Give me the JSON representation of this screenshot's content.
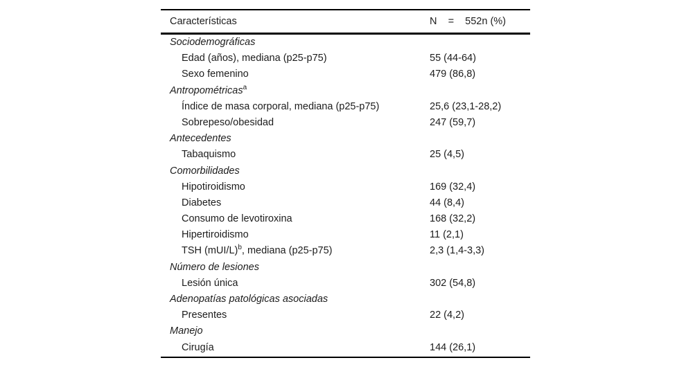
{
  "table": {
    "header": {
      "characteristics_label": "Características",
      "n_total_label": "N    =    552n (%)"
    },
    "sections": [
      {
        "title": "Sociodemográficas",
        "sup": "",
        "rows": [
          {
            "label": "Edad (años), mediana (p25-p75)",
            "sup": "",
            "label_after": "",
            "value": "55 (44-64)"
          },
          {
            "label": "Sexo femenino",
            "sup": "",
            "label_after": "",
            "value": "479 (86,8)"
          }
        ]
      },
      {
        "title": "Antropométricas",
        "sup": "a",
        "rows": [
          {
            "label": "Índice de masa corporal, mediana (p25-p75)",
            "sup": "",
            "label_after": "",
            "value": "25,6 (23,1-28,2)"
          },
          {
            "label": "Sobrepeso/obesidad",
            "sup": "",
            "label_after": "",
            "value": "247 (59,7)"
          }
        ]
      },
      {
        "title": "Antecedentes",
        "sup": "",
        "rows": [
          {
            "label": "Tabaquismo",
            "sup": "",
            "label_after": "",
            "value": "25 (4,5)"
          }
        ]
      },
      {
        "title": "Comorbilidades",
        "sup": "",
        "rows": [
          {
            "label": "Hipotiroidismo",
            "sup": "",
            "label_after": "",
            "value": "169 (32,4)"
          },
          {
            "label": "Diabetes",
            "sup": "",
            "label_after": "",
            "value": "44 (8,4)"
          },
          {
            "label": "Consumo de levotiroxina",
            "sup": "",
            "label_after": "",
            "value": "168 (32,2)"
          },
          {
            "label": "Hipertiroidismo",
            "sup": "",
            "label_after": "",
            "value": "11 (2,1)"
          },
          {
            "label": "TSH (mUI/L)",
            "sup": "b",
            "label_after": ", mediana (p25-p75)",
            "value": "2,3 (1,4-3,3)"
          }
        ]
      },
      {
        "title": "Número de lesiones",
        "sup": "",
        "rows": [
          {
            "label": "Lesión única",
            "sup": "",
            "label_after": "",
            "value": "302 (54,8)"
          }
        ]
      },
      {
        "title": "Adenopatías patológicas asociadas",
        "sup": "",
        "rows": [
          {
            "label": "Presentes",
            "sup": "",
            "label_after": "",
            "value": "22 (4,2)"
          }
        ]
      },
      {
        "title": "Manejo",
        "sup": "",
        "rows": [
          {
            "label": "Cirugía",
            "sup": "",
            "label_after": "",
            "value": "144 (26,1)"
          }
        ]
      }
    ],
    "colors": {
      "text": "#1c1c1c",
      "rule": "#000000",
      "background": "#ffffff"
    }
  }
}
